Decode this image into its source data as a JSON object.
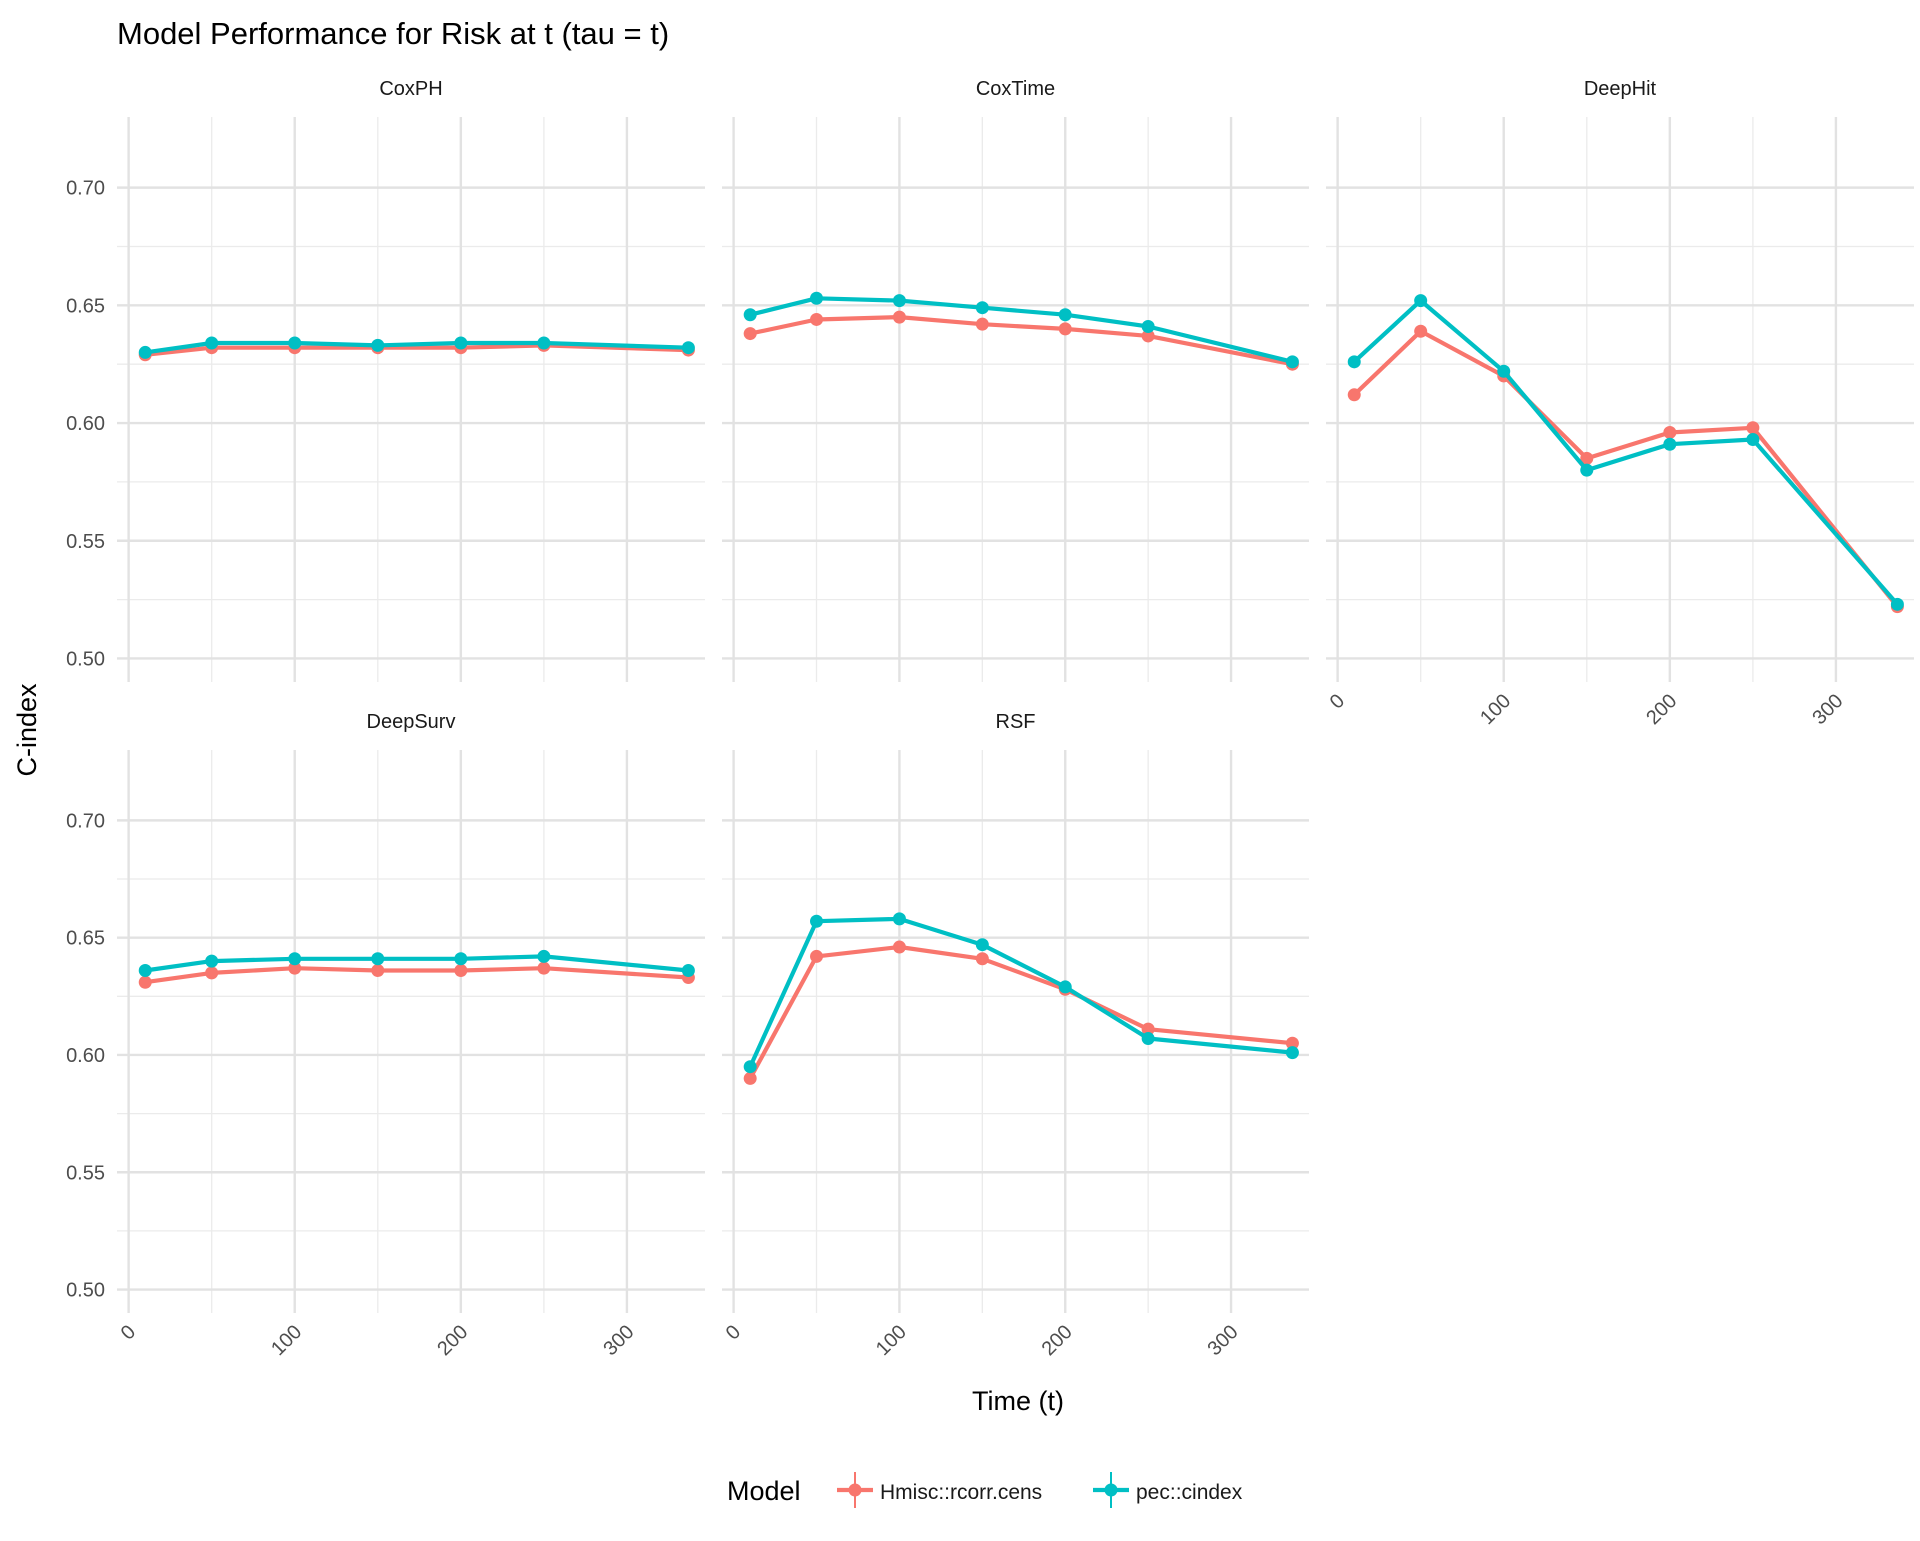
{
  "chart_data": {
    "type": "line",
    "title": "Model Performance for Risk at t (tau = t)",
    "xlabel": "Time (t)",
    "ylabel": "C-index",
    "xlim": [
      -7,
      347
    ],
    "ylim": [
      0.49,
      0.73
    ],
    "x_ticks": [
      0,
      100,
      200,
      300
    ],
    "x_tick_labels": [
      "0",
      "100",
      "200",
      "300"
    ],
    "y_ticks": [
      0.5,
      0.55,
      0.6,
      0.65,
      0.7
    ],
    "y_tick_labels": [
      "0.50",
      "0.55",
      "0.60",
      "0.65",
      "0.70"
    ],
    "grid": true,
    "legend": {
      "title": "Model",
      "position": "bottom",
      "entries": [
        "Hmisc::rcorr.cens",
        "pec::cindex"
      ]
    },
    "colors": {
      "Hmisc::rcorr.cens": "#F8766D",
      "pec::cindex": "#00BFC4"
    },
    "x": [
      10,
      50,
      100,
      150,
      200,
      250,
      337
    ],
    "panels": [
      {
        "name": "CoxPH",
        "series": [
          {
            "name": "Hmisc::rcorr.cens",
            "values": [
              0.629,
              0.632,
              0.632,
              0.632,
              0.632,
              0.633,
              0.631
            ]
          },
          {
            "name": "pec::cindex",
            "values": [
              0.63,
              0.634,
              0.634,
              0.633,
              0.634,
              0.634,
              0.632
            ]
          }
        ]
      },
      {
        "name": "CoxTime",
        "series": [
          {
            "name": "Hmisc::rcorr.cens",
            "values": [
              0.638,
              0.644,
              0.645,
              0.642,
              0.64,
              0.637,
              0.625
            ]
          },
          {
            "name": "pec::cindex",
            "values": [
              0.646,
              0.653,
              0.652,
              0.649,
              0.646,
              0.641,
              0.626
            ]
          }
        ]
      },
      {
        "name": "DeepHit",
        "series": [
          {
            "name": "Hmisc::rcorr.cens",
            "values": [
              0.612,
              0.639,
              0.62,
              0.585,
              0.596,
              0.598,
              0.522
            ]
          },
          {
            "name": "pec::cindex",
            "values": [
              0.626,
              0.652,
              0.622,
              0.58,
              0.591,
              0.593,
              0.523
            ]
          }
        ]
      },
      {
        "name": "DeepSurv",
        "series": [
          {
            "name": "Hmisc::rcorr.cens",
            "values": [
              0.631,
              0.635,
              0.637,
              0.636,
              0.636,
              0.637,
              0.633
            ]
          },
          {
            "name": "pec::cindex",
            "values": [
              0.636,
              0.64,
              0.641,
              0.641,
              0.641,
              0.642,
              0.636
            ]
          }
        ]
      },
      {
        "name": "RSF",
        "series": [
          {
            "name": "Hmisc::rcorr.cens",
            "values": [
              0.59,
              0.642,
              0.646,
              0.641,
              0.628,
              0.611,
              0.605
            ]
          },
          {
            "name": "pec::cindex",
            "values": [
              0.595,
              0.657,
              0.658,
              0.647,
              0.629,
              0.607,
              0.601
            ]
          }
        ]
      }
    ]
  }
}
